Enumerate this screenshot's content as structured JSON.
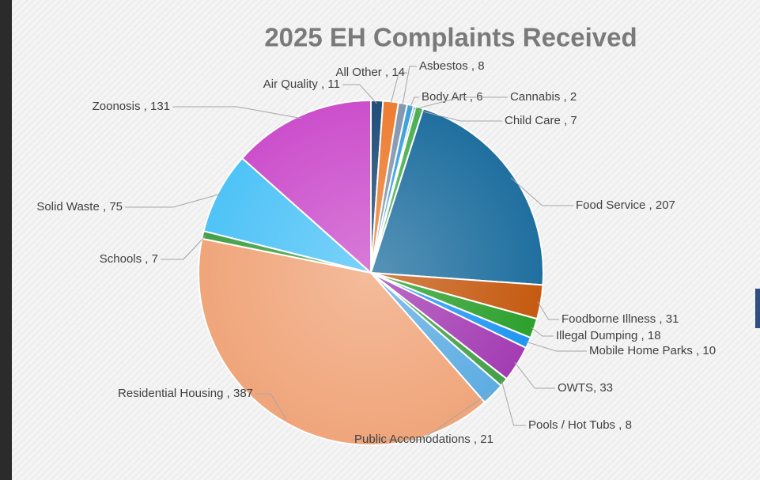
{
  "chart_data": {
    "type": "pie",
    "title": "2025 EH Complaints Received",
    "categories": [
      "Air Quality",
      "All Other",
      "Asbestos",
      "Body Art",
      "Cannabis",
      "Child Care",
      "Food Service",
      "Foodborne Illness",
      "Illegal Dumping",
      "Mobile Home Parks",
      "OWTS",
      "Pools / Hot Tubs",
      "Public Accomodations",
      "Residential Housing",
      "Schools",
      "Solid Waste",
      "Zoonosis"
    ],
    "values": [
      11,
      14,
      8,
      6,
      2,
      7,
      207,
      31,
      18,
      10,
      33,
      8,
      21,
      387,
      7,
      75,
      131
    ],
    "value_labels": [
      " , 11",
      " , 14",
      " , 8",
      " , 6",
      " , 2",
      " , 7",
      " , 207",
      " , 31",
      " , 18",
      " , 10",
      ", 33",
      " , 8",
      " , 21",
      " , 387",
      " , 7",
      " , 75",
      " , 131"
    ],
    "colors": [
      "#1f4e79",
      "#ed7d31",
      "#8497b0",
      "#3aa0dc",
      "#2e75b6",
      "#4caf50",
      "#1f6f9f",
      "#c55a11",
      "#2ca02c",
      "#2196f3",
      "#a43cb3",
      "#43a047",
      "#5dade2",
      "#f0a57a",
      "#43a047",
      "#4fc3f7",
      "#cc4fcc"
    ]
  }
}
